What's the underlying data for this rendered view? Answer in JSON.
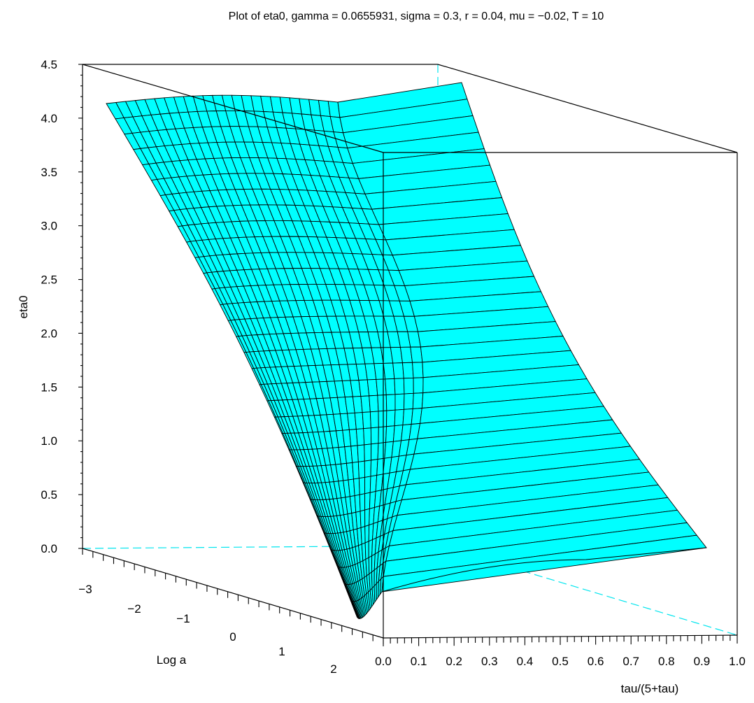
{
  "chart_data": {
    "type": "surface",
    "title": "Plot of eta0, gamma = 0.0655931, sigma = 0.3, r = 0.04, mu = −0.02, T = 10",
    "x_label": "Log a",
    "y_label": "tau/(5+tau)",
    "z_label": "eta0",
    "x_ticks": [
      "−3",
      "−2",
      "−1",
      "0",
      "1",
      "2"
    ],
    "y_ticks": [
      "0.0",
      "0.1",
      "0.2",
      "0.3",
      "0.4",
      "0.5",
      "0.6",
      "0.7",
      "0.8",
      "0.9",
      "1.0"
    ],
    "z_ticks": [
      "0.0",
      "0.5",
      "1.0",
      "1.5",
      "2.0",
      "2.5",
      "3.0",
      "3.5",
      "4.0",
      "4.5"
    ],
    "x_range": [
      -3.2,
      2.6
    ],
    "y_range": [
      0,
      1
    ],
    "z_range": [
      0,
      4.5
    ],
    "surface_color": "#00ffff",
    "hidden_edge_color": "#00e5ee",
    "surface_profile": {
      "note_free": true,
      "front_edge_log_a": [
        -3.0,
        -2.0,
        -1.0,
        0.0,
        1.0,
        2.0,
        2.6
      ],
      "front_edge_eta0_at_tau0": [
        4.1,
        3.6,
        2.9,
        2.2,
        1.3,
        0.35,
        0.05
      ]
    }
  }
}
